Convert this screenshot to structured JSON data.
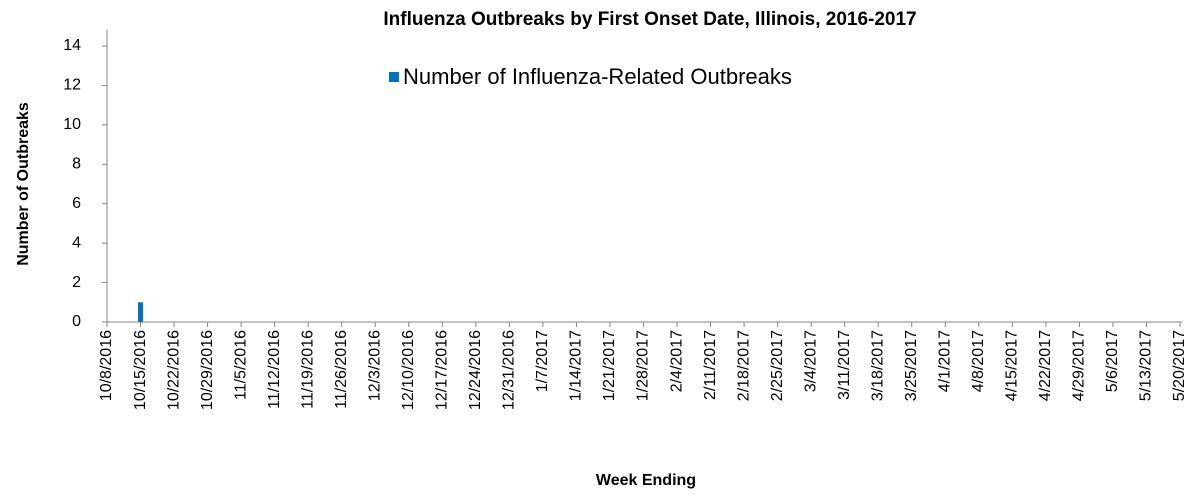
{
  "chart_data": {
    "type": "bar",
    "title": "Influenza Outbreaks by First Onset Date, Illinois, 2016-2017",
    "x_label": "Week Ending",
    "y_label": "Number of Outbreaks",
    "categories": [
      "10/8/2016",
      "10/15/2016",
      "10/22/2016",
      "10/29/2016",
      "11/5/2016",
      "11/12/2016",
      "11/19/2016",
      "11/26/2016",
      "12/3/2016",
      "12/10/2016",
      "12/17/2016",
      "12/24/2016",
      "12/31/2016",
      "1/7/2017",
      "1/14/2017",
      "1/21/2017",
      "1/28/2017",
      "2/4/2017",
      "2/11/2017",
      "2/18/2017",
      "2/25/2017",
      "3/4/2017",
      "3/11/2017",
      "3/18/2017",
      "3/25/2017",
      "4/1/2017",
      "4/8/2017",
      "4/15/2017",
      "4/22/2017",
      "4/29/2017",
      "5/6/2017",
      "5/13/2017",
      "5/20/2017"
    ],
    "series": [
      {
        "name": "Number of Influenza-Related Outbreaks",
        "color": "#0070c0",
        "values": [
          0,
          1,
          0,
          0,
          0,
          0,
          0,
          0,
          0,
          0,
          0,
          0,
          0,
          0,
          0,
          0,
          0,
          0,
          0,
          0,
          0,
          0,
          0,
          0,
          0,
          0,
          0,
          0,
          0,
          0,
          0,
          0,
          0
        ]
      }
    ],
    "ylim": [
      0,
      14
    ],
    "yticks": [
      0,
      2,
      4,
      6,
      8,
      10,
      12,
      14
    ],
    "grid": false
  }
}
